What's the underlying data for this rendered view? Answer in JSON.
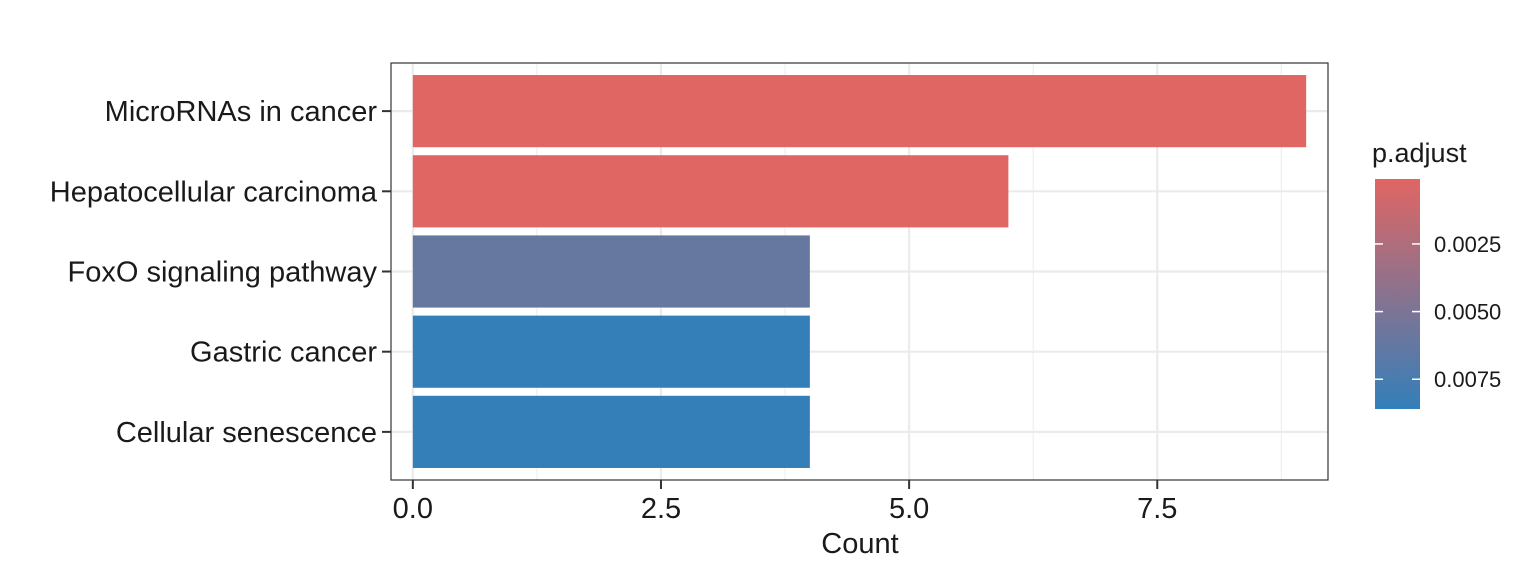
{
  "chart_data": {
    "type": "bar",
    "orientation": "horizontal",
    "categories": [
      "MicroRNAs in cancer",
      "Hepatocellular carcinoma",
      "FoxO signaling pathway",
      "Gastric cancer",
      "Cellular senescence"
    ],
    "values": [
      9,
      6,
      4,
      4,
      4
    ],
    "p_adjust": [
      0.0001,
      0.0001,
      0.0061,
      0.0085,
      0.0085
    ],
    "xlabel": "Count",
    "ylabel": "",
    "xlim": [
      -0.22,
      9.22
    ],
    "x_ticks": [
      0.0,
      2.5,
      5.0,
      7.5
    ],
    "x_tick_labels": [
      "0.0",
      "2.5",
      "5.0",
      "7.5"
    ],
    "grid": true,
    "legend": {
      "title": "p.adjust",
      "position": "right",
      "type": "colorbar",
      "range": [
        0.0001,
        0.0086
      ],
      "ticks": [
        0.0025,
        0.005,
        0.0075
      ],
      "tick_labels": [
        "0.0025",
        "0.0050",
        "0.0075"
      ],
      "color_low": "#e06663",
      "color_high": "#337fba"
    }
  }
}
